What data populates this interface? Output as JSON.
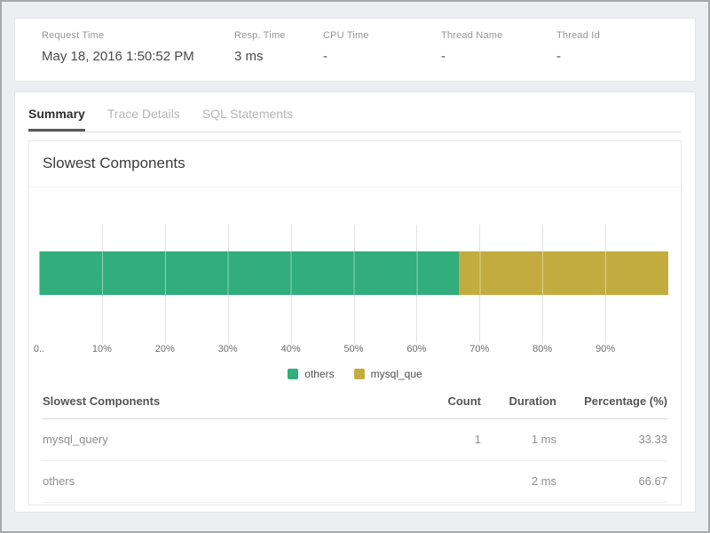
{
  "request_info": {
    "fields": [
      {
        "label": "Request Time",
        "value": "May 18, 2016 1:50:52 PM"
      },
      {
        "label": "Resp. Time",
        "value": "3 ms"
      },
      {
        "label": "CPU Time",
        "value": "-"
      },
      {
        "label": "Thread Name",
        "value": "-"
      },
      {
        "label": "Thread Id",
        "value": "-"
      }
    ]
  },
  "tabs": [
    {
      "label": "Summary",
      "active": true
    },
    {
      "label": "Trace Details",
      "active": false
    },
    {
      "label": "SQL Statements",
      "active": false
    }
  ],
  "section": {
    "title": "Slowest Components"
  },
  "chart_data": {
    "type": "bar",
    "variant": "horizontal-stacked",
    "title": "Slowest Components",
    "xlim": [
      0,
      100
    ],
    "grid": true,
    "legend_position": "bottom",
    "x_ticks": [
      "0..",
      "10%",
      "20%",
      "30%",
      "40%",
      "50%",
      "60%",
      "70%",
      "80%",
      "90%"
    ],
    "series": [
      {
        "name": "others",
        "value": 66.67,
        "css_width": "66.67%",
        "color": "#31ae7b"
      },
      {
        "name": "mysql_que",
        "value": 33.33,
        "css_width": "33.33%",
        "color": "#c3ac3f"
      }
    ]
  },
  "table": {
    "columns": [
      "Slowest Components",
      "Count",
      "Duration",
      "Percentage (%)"
    ],
    "rows": [
      {
        "name": "mysql_query",
        "count": "1",
        "duration": "1 ms",
        "percentage": "33.33"
      },
      {
        "name": "others",
        "count": "",
        "duration": "2 ms",
        "percentage": "66.67"
      }
    ]
  }
}
